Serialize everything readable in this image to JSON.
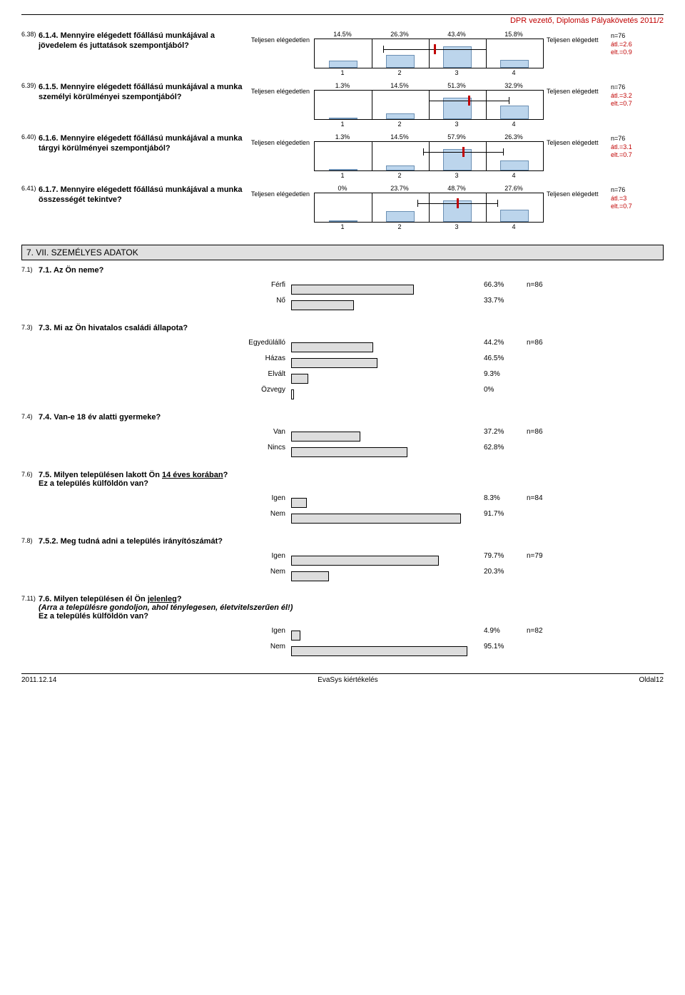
{
  "header_right": "DPR vezető, Diplomás Pályakövetés 2011/2",
  "labels": {
    "left": "Teljesen elégedetlen",
    "right": "Teljesen elégedett"
  },
  "scale_colors": {
    "bar_fill": "#bcd5ec",
    "bar_border": "#6a8fb3",
    "mean": "#c00000",
    "box_border": "#000000"
  },
  "scale_questions": [
    {
      "num": "6.38)",
      "q": "6.1.4. Mennyire elégedett főállású munkájával a jövedelem és juttatások szempontjából?",
      "pcts": [
        14.5,
        26.3,
        43.4,
        15.8
      ],
      "n": "n=76",
      "atl": "átl.=2.6",
      "elt": "elt.=0.9",
      "mean": 2.6,
      "ci_lo": 1.7,
      "ci_hi": 3.5
    },
    {
      "num": "6.39)",
      "q": "6.1.5. Mennyire elégedett főállású munkájával a munka személyi körülményei szempontjából?",
      "pcts": [
        1.3,
        14.5,
        51.3,
        32.9
      ],
      "n": "n=76",
      "atl": "átl.=3.2",
      "elt": "elt.=0.7",
      "mean": 3.2,
      "ci_lo": 2.5,
      "ci_hi": 3.9
    },
    {
      "num": "6.40)",
      "q": "6.1.6. Mennyire elégedett főállású munkájával a munka tárgyi körülményei szempontjából?",
      "pcts": [
        1.3,
        14.5,
        57.9,
        26.3
      ],
      "n": "n=76",
      "atl": "átl.=3.1",
      "elt": "elt.=0.7",
      "mean": 3.1,
      "ci_lo": 2.4,
      "ci_hi": 3.8
    },
    {
      "num": "6.41)",
      "q": "6.1.7. Mennyire elégedett főállású munkájával a munka összességét tekintve?",
      "pcts": [
        0,
        23.7,
        48.7,
        27.6
      ],
      "n": "n=76",
      "atl": "átl.=3",
      "elt": "elt.=0.7",
      "mean": 3.0,
      "ci_lo": 2.3,
      "ci_hi": 3.7
    }
  ],
  "section7_title": "7. VII. SZEMÉLYES ADATOK",
  "hbar_questions": [
    {
      "num": "7.1)",
      "q_html": "7.1. Az Ön neme?",
      "n": "n=86",
      "rows": [
        {
          "label": "Férfi",
          "pct": 66.3
        },
        {
          "label": "Nő",
          "pct": 33.7
        }
      ]
    },
    {
      "num": "7.3)",
      "q_html": "7.3. Mi az Ön hivatalos családi állapota?",
      "n": "n=86",
      "rows": [
        {
          "label": "Egyedülálló",
          "pct": 44.2
        },
        {
          "label": "Házas",
          "pct": 46.5
        },
        {
          "label": "Elvált",
          "pct": 9.3
        },
        {
          "label": "Özvegy",
          "pct": 0
        }
      ]
    },
    {
      "num": "7.4)",
      "q_html": "7.4. Van-e 18 év alatti gyermeke?",
      "n": "n=86",
      "rows": [
        {
          "label": "Van",
          "pct": 37.2
        },
        {
          "label": "Nincs",
          "pct": 62.8
        }
      ]
    },
    {
      "num": "7.6)",
      "q_html": "7.5. Milyen településen lakott Ön <span class='underline'>14 éves korában</span>?<br>Ez a település külföldön van?",
      "n": "n=84",
      "rows": [
        {
          "label": "Igen",
          "pct": 8.3
        },
        {
          "label": "Nem",
          "pct": 91.7
        }
      ]
    },
    {
      "num": "7.8)",
      "q_html": "7.5.2. Meg tudná adni a település irányítószámát?",
      "n": "n=79",
      "rows": [
        {
          "label": "Igen",
          "pct": 79.7
        },
        {
          "label": "Nem",
          "pct": 20.3
        }
      ]
    },
    {
      "num": "7.11)",
      "q_html": "7.6. Milyen településen él Ön <span class='underline'>jelenleg</span>?<br><span class='hq-sub'>(Arra a településre gondoljon, ahol ténylegesen, életvitelszerűen él!)</span><br>Ez a település külföldön van?",
      "n": "n=82",
      "rows": [
        {
          "label": "Igen",
          "pct": 4.9
        },
        {
          "label": "Nem",
          "pct": 95.1
        }
      ]
    }
  ],
  "footer": {
    "left": "2011.12.14",
    "center": "EvaSys kiértékelés",
    "right": "Oldal12"
  }
}
